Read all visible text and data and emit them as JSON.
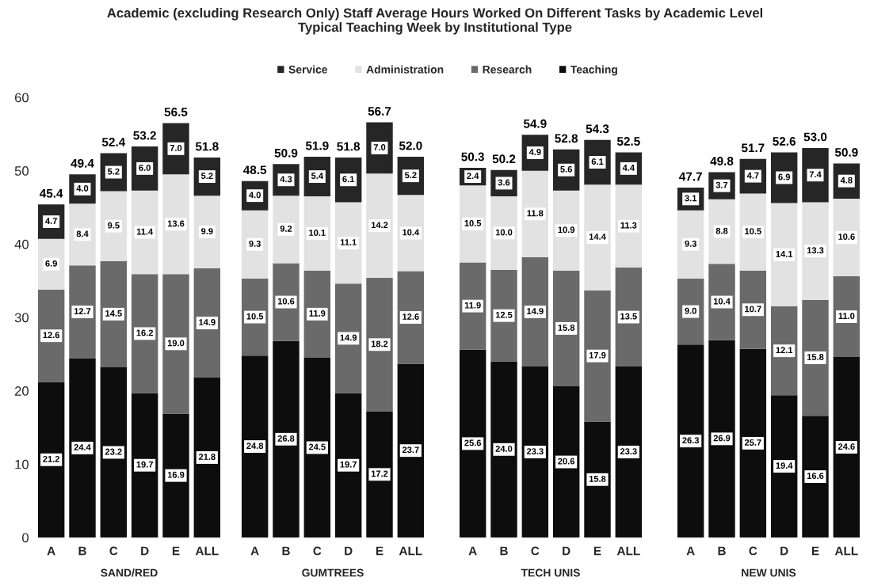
{
  "chart_data": [
    {
      "type": "bar",
      "title": "Academic (excluding Research Only) Staff Average Hours Worked On Different Tasks by Academic Level\nTypical Teaching Week by Institutional Type",
      "xlabel": "SAND/RED",
      "categories": [
        "A",
        "B",
        "C",
        "D",
        "E",
        "ALL"
      ],
      "stacked": true,
      "legend": "top",
      "ylim": [
        0,
        60
      ],
      "yticks": [
        0,
        10,
        20,
        30,
        40,
        50,
        60
      ],
      "series": [
        {
          "name": "Teaching",
          "color": "#0d0d0d",
          "values": [
            21.2,
            24.4,
            23.2,
            19.7,
            16.9,
            21.8
          ],
          "value_labels": [
            "21.2",
            "24.4",
            "23.2",
            "19.7",
            "16.9",
            "21.8"
          ]
        },
        {
          "name": "Research",
          "color": "#6a6a6a",
          "values": [
            12.6,
            12.7,
            14.5,
            16.2,
            19.0,
            14.9
          ],
          "value_labels": [
            "12.6",
            "12.7",
            "14.5",
            "16.2",
            "19.0",
            "14.9"
          ]
        },
        {
          "name": "Administration",
          "color": "#e2e2e2",
          "values": [
            6.9,
            8.4,
            9.5,
            11.4,
            13.6,
            9.9
          ],
          "value_labels": [
            "6.9",
            "8.4",
            "9.5",
            "11.4",
            "13.6",
            "9.9"
          ]
        },
        {
          "name": "Service",
          "color": "#262626",
          "values": [
            4.7,
            4.0,
            5.2,
            6.0,
            7.0,
            5.2
          ],
          "value_labels": [
            "4.7",
            "4.0",
            "5.2",
            "6.0",
            "7.0",
            "5.2"
          ]
        }
      ],
      "totals": [
        "45.4",
        "49.4",
        "52.4",
        "53.2",
        "56.5",
        "51.8"
      ]
    },
    {
      "type": "bar",
      "xlabel": "GUMTREES",
      "categories": [
        "A",
        "B",
        "C",
        "D",
        "E",
        "ALL"
      ],
      "stacked": true,
      "ylim": [
        0,
        60
      ],
      "yticks": [
        0,
        10,
        20,
        30,
        40,
        50,
        60
      ],
      "tick_labels": "x",
      "series": [
        {
          "color": "#0d0d0d",
          "values": [
            24.8,
            26.8,
            24.5,
            19.7,
            17.2,
            23.7
          ],
          "value_labels": [
            "24.8",
            "26.8",
            "24.5",
            "19.7",
            "17.2",
            "23.7"
          ]
        },
        {
          "color": "#6a6a6a",
          "values": [
            10.5,
            10.6,
            11.9,
            14.9,
            18.2,
            12.6
          ],
          "value_labels": [
            "10.5",
            "10.6",
            "11.9",
            "14.9",
            "18.2",
            "12.6"
          ]
        },
        {
          "color": "#e2e2e2",
          "values": [
            9.3,
            9.2,
            10.1,
            11.1,
            14.2,
            10.4
          ],
          "value_labels": [
            "9.3",
            "9.2",
            "10.1",
            "11.1",
            "14.2",
            "10.4"
          ]
        },
        {
          "color": "#262626",
          "values": [
            4.0,
            4.3,
            5.4,
            6.1,
            7.0,
            5.2
          ],
          "value_labels": [
            "4.0",
            "4.3",
            "5.4",
            "6.1",
            "7.0",
            "5.2"
          ]
        }
      ],
      "totals": [
        "48.5",
        "50.9",
        "51.9",
        "51.8",
        "56.7",
        "52.0"
      ]
    },
    {
      "type": "bar",
      "xlabel": "TECH UNIS",
      "categories": [
        "A",
        "B",
        "C",
        "D",
        "E",
        "ALL"
      ],
      "stacked": true,
      "ylim": [
        0,
        60
      ],
      "yticks": [
        0,
        10,
        20,
        30,
        40,
        50,
        60
      ],
      "tick_labels": "x",
      "series": [
        {
          "color": "#0d0d0d",
          "values": [
            25.6,
            24.0,
            23.3,
            20.6,
            15.8,
            23.3
          ],
          "value_labels": [
            "25.6",
            "24.0",
            "23.3",
            "20.6",
            "15.8",
            "23.3"
          ]
        },
        {
          "color": "#6a6a6a",
          "values": [
            11.9,
            12.5,
            14.9,
            15.8,
            17.9,
            13.5
          ],
          "value_labels": [
            "11.9",
            "12.5",
            "14.9",
            "15.8",
            "17.9",
            "13.5"
          ]
        },
        {
          "color": "#e2e2e2",
          "values": [
            10.5,
            10.0,
            11.8,
            10.9,
            14.4,
            11.3
          ],
          "value_labels": [
            "10.5",
            "10.0",
            "11.8",
            "10.9",
            "14.4",
            "11.3"
          ]
        },
        {
          "color": "#262626",
          "values": [
            2.4,
            3.6,
            4.9,
            5.6,
            6.1,
            4.4
          ],
          "value_labels": [
            "2.4",
            "3.6",
            "4.9",
            "5.6",
            "6.1",
            "4.4"
          ]
        }
      ],
      "totals": [
        "50.3",
        "50.2",
        "54.9",
        "52.8",
        "54.3",
        "52.5"
      ]
    },
    {
      "type": "bar",
      "xlabel": "NEW UNIS",
      "categories": [
        "A",
        "B",
        "C",
        "D",
        "E",
        "ALL"
      ],
      "stacked": true,
      "ylim": [
        0,
        60
      ],
      "yticks": [
        0,
        10,
        20,
        30,
        40,
        50,
        60
      ],
      "tick_labels": "x",
      "series": [
        {
          "color": "#0d0d0d",
          "values": [
            26.3,
            26.9,
            25.7,
            19.4,
            16.6,
            24.6
          ],
          "value_labels": [
            "26.3",
            "26.9",
            "25.7",
            "19.4",
            "16.6",
            "24.6"
          ]
        },
        {
          "color": "#6a6a6a",
          "values": [
            9.0,
            10.4,
            10.7,
            12.1,
            15.8,
            11.0
          ],
          "value_labels": [
            "9.0",
            "10.4",
            "10.7",
            "12.1",
            "15.8",
            "11.0"
          ]
        },
        {
          "color": "#e2e2e2",
          "values": [
            9.3,
            8.8,
            10.5,
            14.1,
            13.3,
            10.6
          ],
          "value_labels": [
            "9.3",
            "8.8",
            "10.5",
            "14.1",
            "13.3",
            "10.6"
          ]
        },
        {
          "color": "#262626",
          "values": [
            3.1,
            3.7,
            4.7,
            6.9,
            7.4,
            4.8
          ],
          "value_labels": [
            "3.1",
            "3.7",
            "4.7",
            "6.9",
            "7.4",
            "4.8"
          ]
        }
      ],
      "totals": [
        "47.7",
        "49.8",
        "51.7",
        "52.6",
        "53.0",
        "50.9"
      ]
    }
  ]
}
